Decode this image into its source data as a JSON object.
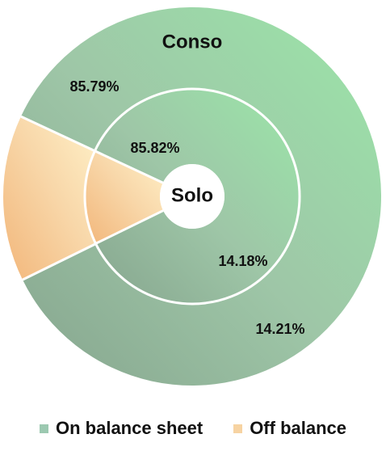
{
  "chart_data": {
    "type": "pie",
    "subtype": "nested-donut",
    "rings": [
      {
        "name": "Conso",
        "values": [
          85.79,
          14.21
        ],
        "labels": [
          "85.79%",
          "14.21%"
        ]
      },
      {
        "name": "Solo",
        "values": [
          85.82,
          14.18
        ],
        "labels": [
          "85.82%",
          "14.18%"
        ]
      }
    ],
    "categories": [
      "On balance sheet",
      "Off balance"
    ],
    "legend": {
      "position": "bottom",
      "items": [
        "On balance sheet",
        "Off balance"
      ]
    },
    "colors": {
      "on_balance": "#9ec8a7",
      "off_balance": "#f3c48f",
      "legend_on": "#9cc9b1",
      "legend_off": "#f7d3a2",
      "ring_separator": "#ffffff"
    }
  }
}
